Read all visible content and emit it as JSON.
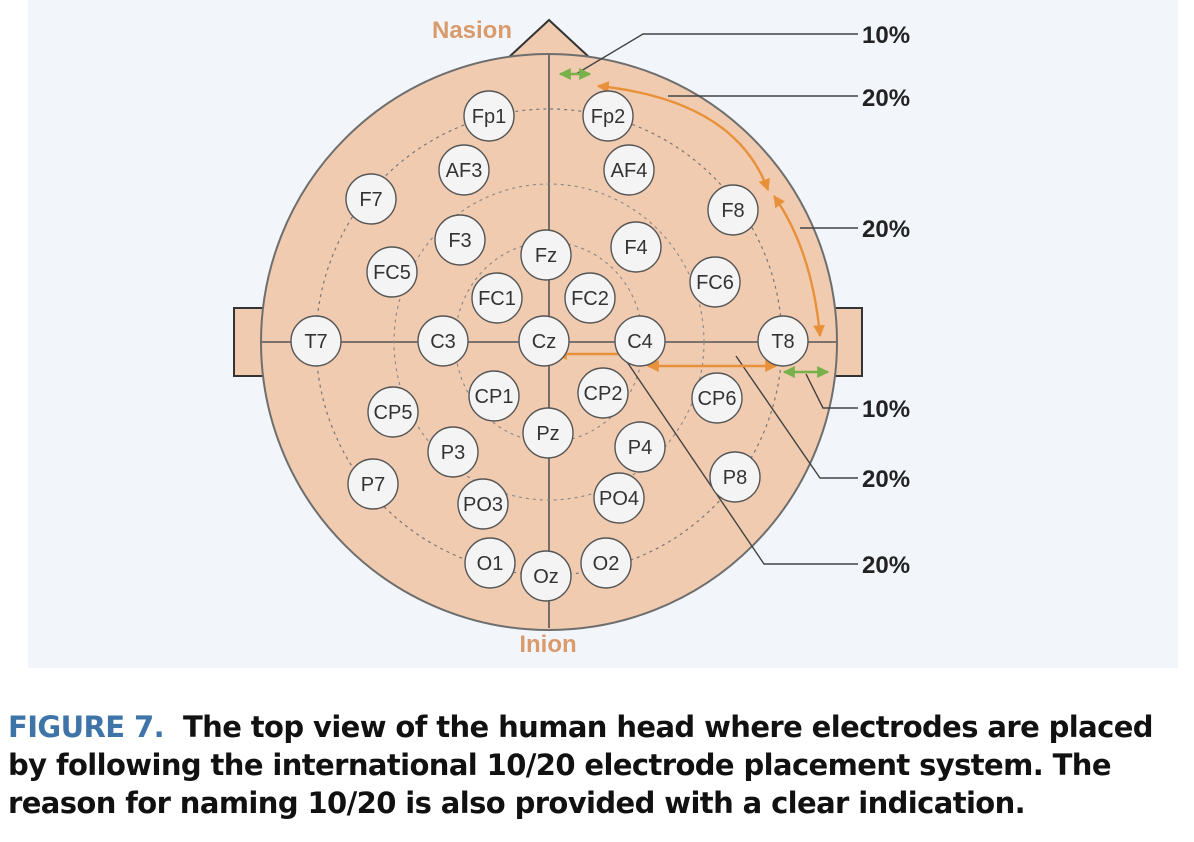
{
  "landmarks": {
    "top": "Nasion",
    "bottom": "Inion"
  },
  "percent_labels": [
    "10%",
    "20%",
    "20%",
    "10%",
    "20%",
    "20%"
  ],
  "electrodes": [
    {
      "label": "Fp1"
    },
    {
      "label": "Fp2"
    },
    {
      "label": "AF3"
    },
    {
      "label": "AF4"
    },
    {
      "label": "F7"
    },
    {
      "label": "F8"
    },
    {
      "label": "F3"
    },
    {
      "label": "Fz"
    },
    {
      "label": "F4"
    },
    {
      "label": "FC5"
    },
    {
      "label": "FC6"
    },
    {
      "label": "FC1"
    },
    {
      "label": "FC2"
    },
    {
      "label": "T7"
    },
    {
      "label": "C3"
    },
    {
      "label": "Cz"
    },
    {
      "label": "C4"
    },
    {
      "label": "T8"
    },
    {
      "label": "CP1"
    },
    {
      "label": "CP2"
    },
    {
      "label": "CP5"
    },
    {
      "label": "CP6"
    },
    {
      "label": "Pz"
    },
    {
      "label": "P3"
    },
    {
      "label": "P4"
    },
    {
      "label": "P7"
    },
    {
      "label": "P8"
    },
    {
      "label": "PO3"
    },
    {
      "label": "PO4"
    },
    {
      "label": "O1"
    },
    {
      "label": "Oz"
    },
    {
      "label": "O2"
    }
  ],
  "caption": {
    "label": "FIGURE 7.",
    "text": "The top view of the human head where electrodes are placed by following the international 10/20 electrode placement system. The reason for naming 10/20 is also provided with a clear indication."
  },
  "colors": {
    "head_fill": "#f0cbb0",
    "head_stroke": "#6e6e6e",
    "electrode_fill": "#f4f4f4",
    "arrow_orange": "#e8913a",
    "arrow_green": "#78b04a",
    "landmark_text": "#d99a6c",
    "caption_label": "#3f74a8"
  }
}
